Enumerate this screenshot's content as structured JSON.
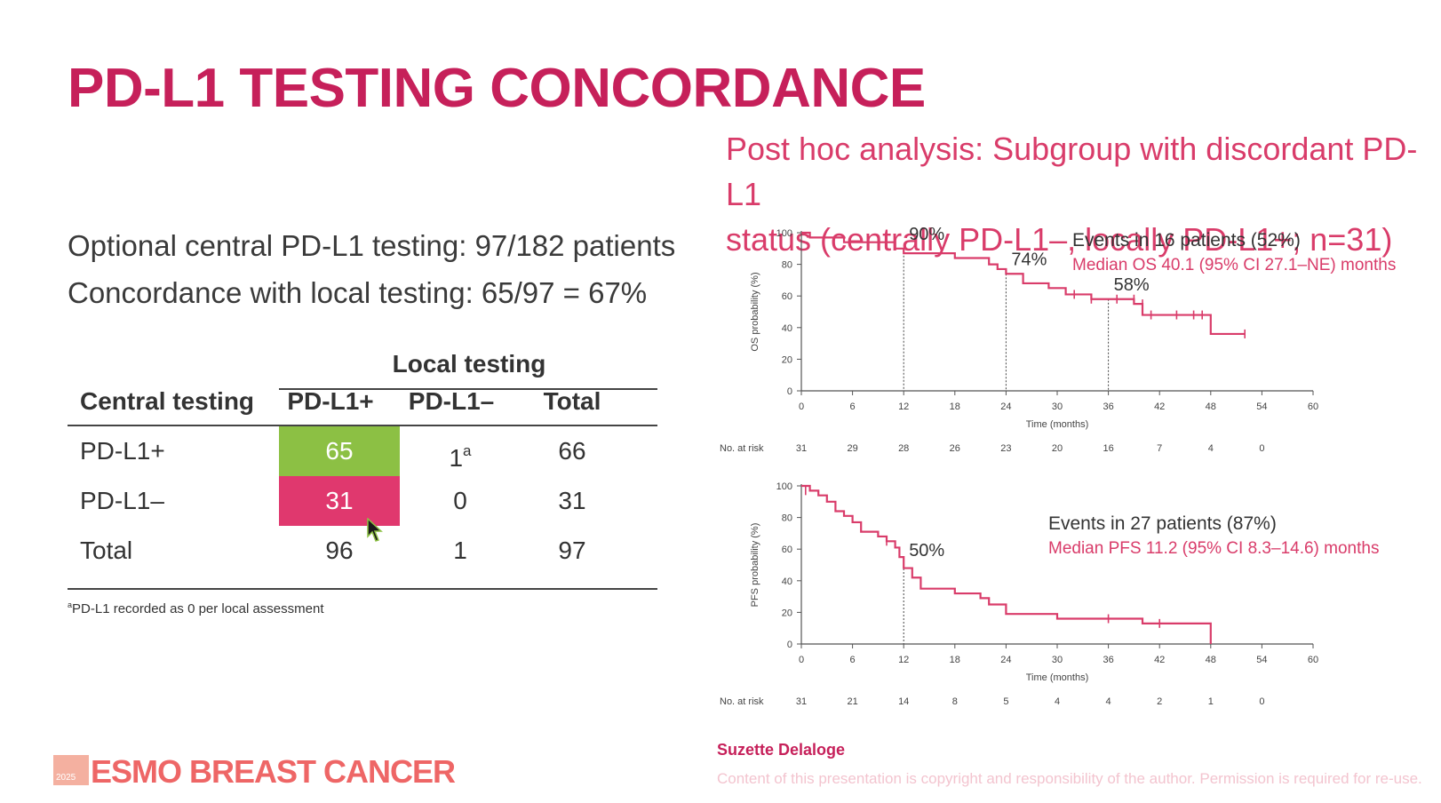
{
  "title": "PD-L1 TESTING CONCORDANCE",
  "stats": {
    "line1": "Optional central PD-L1 testing: 97/182 patients",
    "line2": "Concordance with local testing: 65/97 = 67%"
  },
  "table": {
    "local_header": "Local testing",
    "row_header": "Central testing",
    "columns": [
      "PD-L1+",
      "PD-L1–",
      "Total"
    ],
    "rows": [
      {
        "label": "PD-L1+",
        "cells": [
          "65",
          "1",
          "66"
        ],
        "sup": "a"
      },
      {
        "label": "PD-L1–",
        "cells": [
          "31",
          "0",
          "31"
        ]
      },
      {
        "label": "Total",
        "cells": [
          "96",
          "1",
          "97"
        ]
      }
    ],
    "colors": {
      "green": "#8cc044",
      "pink": "#e0386e"
    }
  },
  "footnote_sup": "a",
  "footnote": "PD-L1 recorded as 0 per local assessment",
  "subtitle": {
    "line1": "Post hoc analysis: Subgroup with discordant PD-L1",
    "line2": "status (centrally PD-L1–, locally PD-L1+; n=31)"
  },
  "chart_data": [
    {
      "type": "line",
      "ylabel": "OS probability (%)",
      "xlabel": "Time (months)",
      "xlim": [
        0,
        60
      ],
      "ylim": [
        0,
        100
      ],
      "x_ticks": [
        "0",
        "6",
        "12",
        "18",
        "24",
        "30",
        "36",
        "42",
        "48",
        "54",
        "60"
      ],
      "y_ticks": [
        "0",
        "20",
        "40",
        "60",
        "80",
        "100"
      ],
      "series": [
        {
          "color": "#d93c6a",
          "x": [
            0,
            1,
            5,
            11,
            12,
            18,
            22,
            23,
            24,
            26,
            29,
            31,
            32,
            34,
            38,
            39,
            40,
            48,
            52
          ],
          "y": [
            100,
            97,
            94,
            90,
            87,
            84,
            80,
            77,
            74,
            68,
            65,
            61,
            61,
            58,
            58,
            55,
            48,
            36,
            36
          ],
          "censor_x": [
            32,
            34,
            37,
            39,
            40,
            41,
            44,
            46,
            47,
            52
          ],
          "censor_y": [
            61,
            58,
            58,
            58,
            55,
            48,
            48,
            48,
            48,
            36
          ]
        }
      ],
      "annotations": [
        {
          "x": 12,
          "y": 90,
          "label": "90%"
        },
        {
          "x": 24,
          "y": 74,
          "label": "74%"
        },
        {
          "x": 36,
          "y": 58,
          "label": "58%"
        }
      ],
      "events": "Events in 16 patients (52%)",
      "median": "Median OS 40.1 (95% CI 27.1–NE) months",
      "at_risk_label": "No. at risk",
      "at_risk": [
        "31",
        "29",
        "28",
        "26",
        "23",
        "20",
        "16",
        "7",
        "4",
        "0"
      ]
    },
    {
      "type": "line",
      "ylabel": "PFS probability (%)",
      "xlabel": "Time (months)",
      "xlim": [
        0,
        60
      ],
      "ylim": [
        0,
        100
      ],
      "x_ticks": [
        "0",
        "6",
        "12",
        "18",
        "24",
        "30",
        "36",
        "42",
        "48",
        "54",
        "60"
      ],
      "y_ticks": [
        "0",
        "20",
        "40",
        "60",
        "80",
        "100"
      ],
      "series": [
        {
          "color": "#d93c6a",
          "x": [
            0,
            1,
            2,
            3,
            4,
            5,
            6,
            7,
            9,
            10,
            11,
            11.5,
            12,
            13,
            14,
            18,
            21,
            22,
            24,
            30,
            40,
            48,
            48
          ],
          "y": [
            100,
            97,
            94,
            90,
            84,
            81,
            77,
            71,
            68,
            65,
            61,
            55,
            48,
            42,
            35,
            32,
            29,
            25,
            19,
            16,
            13,
            10,
            0
          ],
          "censor_x": [
            0.5,
            10,
            36,
            42
          ],
          "censor_y": [
            97,
            65,
            16,
            13
          ]
        }
      ],
      "annotations": [
        {
          "x": 12,
          "y": 50,
          "label": "50%"
        }
      ],
      "events": "Events in 27 patients (87%)",
      "median": "Median PFS 11.2 (95% CI 8.3–14.6) months",
      "at_risk_label": "No. at risk",
      "at_risk": [
        "31",
        "21",
        "14",
        "8",
        "5",
        "4",
        "4",
        "2",
        "1",
        "0"
      ]
    }
  ],
  "presenter": "Suzette Delaloge",
  "copyright": "Content of this presentation is copyright and responsibility of the author. Permission is required for re-use.",
  "logo": {
    "year": "2025",
    "text": "ESMO BREAST CANCER"
  }
}
